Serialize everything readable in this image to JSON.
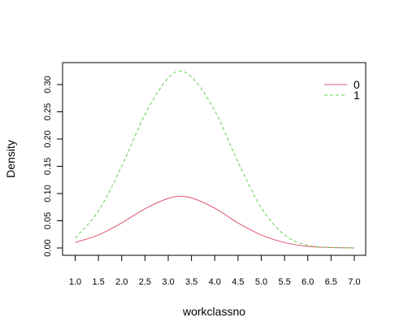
{
  "chart_data": {
    "type": "line",
    "title": "",
    "xlabel": "workclassno",
    "ylabel": "Density",
    "xlim": [
      1.0,
      7.0
    ],
    "ylim": [
      0.0,
      0.33
    ],
    "x_ticks": [
      "1.0",
      "1.5",
      "2.0",
      "2.5",
      "3.0",
      "3.5",
      "4.0",
      "4.5",
      "5.0",
      "5.5",
      "6.0",
      "6.5",
      "7.0"
    ],
    "y_ticks": [
      "0.00",
      "0.05",
      "0.10",
      "0.15",
      "0.20",
      "0.25",
      "0.30"
    ],
    "grid": false,
    "legend_position": "top-right",
    "series": [
      {
        "name": "0",
        "color": "#DF536B",
        "dash": "solid",
        "x": [
          1.0,
          1.5,
          2.0,
          2.5,
          3.0,
          3.25,
          3.5,
          4.0,
          4.5,
          5.0,
          5.5,
          6.0,
          6.5,
          7.0
        ],
        "y": [
          0.01,
          0.024,
          0.046,
          0.072,
          0.091,
          0.095,
          0.092,
          0.073,
          0.046,
          0.024,
          0.01,
          0.003,
          0.001,
          0.0
        ]
      },
      {
        "name": "1",
        "color": "#61D04F",
        "dash": "dashed",
        "x": [
          1.0,
          1.5,
          2.0,
          2.5,
          3.0,
          3.25,
          3.5,
          4.0,
          4.5,
          5.0,
          5.5,
          6.0,
          6.5,
          7.0
        ],
        "y": [
          0.018,
          0.068,
          0.15,
          0.245,
          0.312,
          0.325,
          0.314,
          0.252,
          0.158,
          0.074,
          0.024,
          0.005,
          0.001,
          0.0
        ]
      }
    ]
  }
}
